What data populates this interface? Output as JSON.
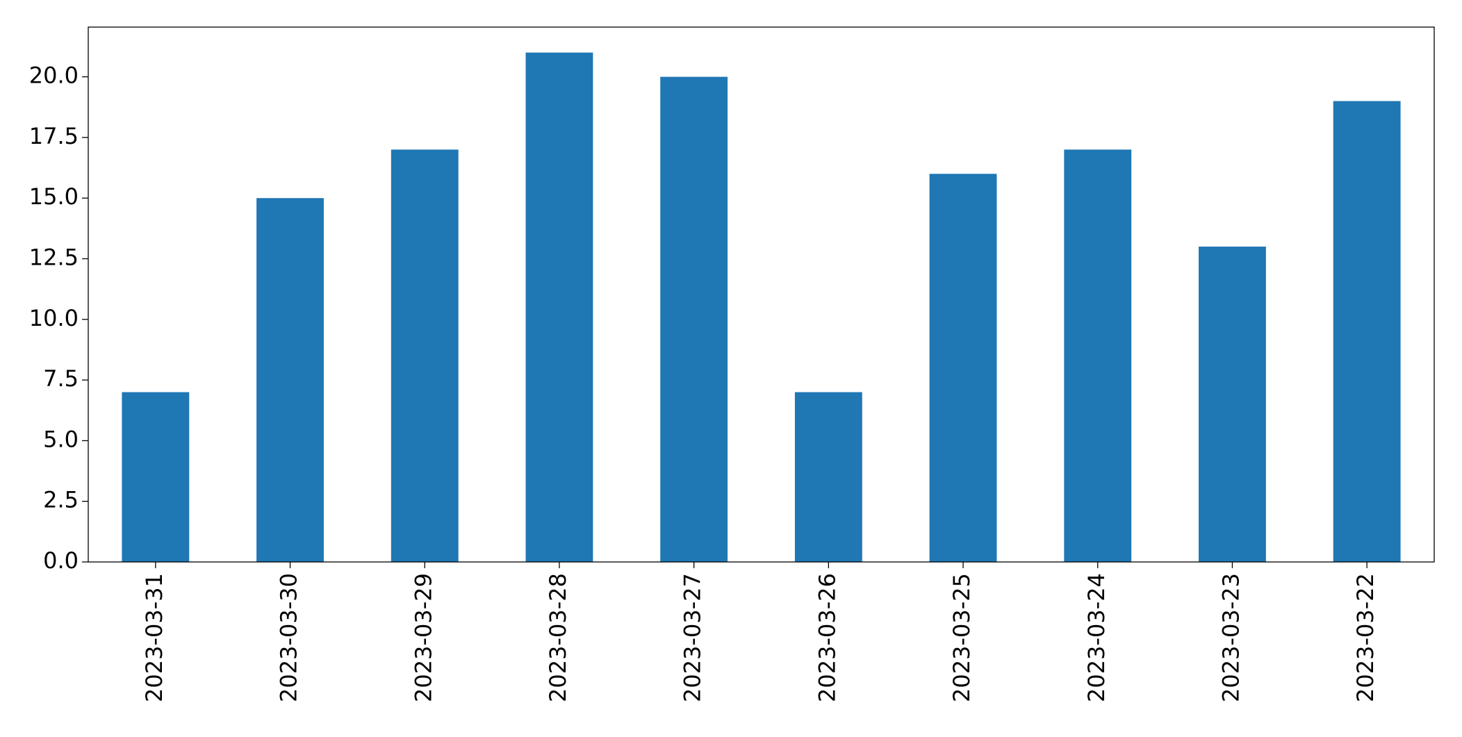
{
  "chart_data": {
    "type": "bar",
    "categories": [
      "2023-03-31",
      "2023-03-30",
      "2023-03-29",
      "2023-03-28",
      "2023-03-27",
      "2023-03-26",
      "2023-03-25",
      "2023-03-24",
      "2023-03-23",
      "2023-03-22"
    ],
    "values": [
      7,
      15,
      17,
      21,
      20,
      7,
      16,
      17,
      13,
      19
    ],
    "color": "#1f77b4",
    "ylim": [
      0,
      22.05
    ],
    "yticks": [
      {
        "value": 0,
        "label": "0.0"
      },
      2.5,
      {
        "value": 5,
        "label": "5.0"
      },
      7.5,
      {
        "value": 10,
        "label": "10.0"
      },
      12.5,
      {
        "value": 15,
        "label": "15.0"
      },
      17.5,
      {
        "value": 20,
        "label": "20.0"
      }
    ],
    "grid": false
  }
}
